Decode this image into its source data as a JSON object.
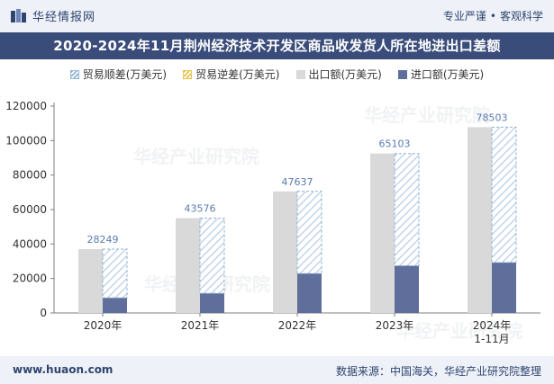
{
  "header": {
    "brand": "华经情报网",
    "tag1": "专业严谨",
    "tag_sep": "•",
    "tag2": "客观科学"
  },
  "title": "2020-2024年11月荆州经济技术开发区商品收发货人所在地进出口差额",
  "footer": {
    "website": "www.huaon.com",
    "source": "数据来源：中国海关，华经产业研究院整理"
  },
  "watermark": "华经产业研究院",
  "chart_data": {
    "type": "bar",
    "categories": [
      "2020年",
      "2021年",
      "2022年",
      "2023年",
      "2024年\n1-11月"
    ],
    "series": [
      {
        "name": "贸易顺差(万美元)",
        "values": [
          28249,
          43576,
          47637,
          65103,
          78503
        ],
        "color": "#8fb3d6"
      },
      {
        "name": "贸易逆差(万美元)",
        "values": [
          0,
          0,
          0,
          0,
          0
        ],
        "color": "#e8c24a"
      },
      {
        "name": "出口额(万美元)",
        "values": [
          37000,
          55000,
          70500,
          92500,
          107800
        ],
        "color": "#d9d9d9"
      },
      {
        "name": "进口额(万美元)",
        "values": [
          8800,
          11400,
          22900,
          27400,
          29300
        ],
        "color": "#5f6e9a"
      }
    ],
    "data_labels": [
      "28249",
      "43576",
      "47637",
      "65103",
      "78503"
    ],
    "ylim": [
      0,
      120000
    ],
    "yticks": [
      "0",
      "20000",
      "40000",
      "60000",
      "80000",
      "100000",
      "120000"
    ],
    "grid": false,
    "legend_position": "top"
  }
}
